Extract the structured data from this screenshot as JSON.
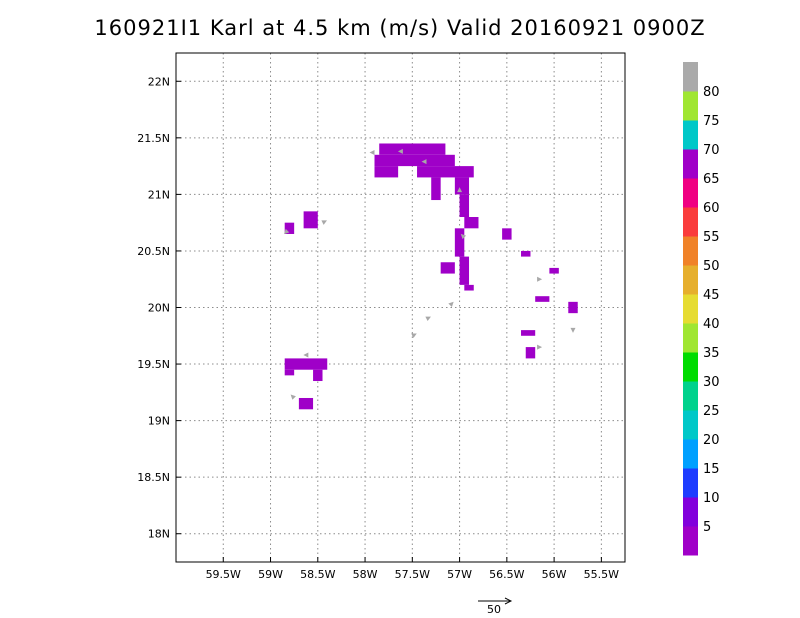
{
  "title": "160921I1 Karl at 4.5 km (m/s) Valid 20160921 0900Z",
  "chart_data": {
    "type": "heatmap",
    "title": "160921I1 Karl at 4.5 km (m/s) Valid 20160921 0900Z",
    "xlim": [
      -60.0,
      -55.25
    ],
    "ylim": [
      17.75,
      22.25
    ],
    "x_ticks": [
      {
        "value": -59.5,
        "label": "59.5W"
      },
      {
        "value": -59.0,
        "label": "59W"
      },
      {
        "value": -58.5,
        "label": "58.5W"
      },
      {
        "value": -58.0,
        "label": "58W"
      },
      {
        "value": -57.5,
        "label": "57.5W"
      },
      {
        "value": -57.0,
        "label": "57W"
      },
      {
        "value": -56.5,
        "label": "56.5W"
      },
      {
        "value": -56.0,
        "label": "56W"
      },
      {
        "value": -55.5,
        "label": "55.5W"
      }
    ],
    "y_ticks": [
      {
        "value": 22.0,
        "label": "22N"
      },
      {
        "value": 21.5,
        "label": "21.5N"
      },
      {
        "value": 21.0,
        "label": "21N"
      },
      {
        "value": 20.5,
        "label": "20.5N"
      },
      {
        "value": 20.0,
        "label": "20N"
      },
      {
        "value": 19.5,
        "label": "19.5N"
      },
      {
        "value": 19.0,
        "label": "19N"
      },
      {
        "value": 18.5,
        "label": "18.5N"
      },
      {
        "value": 18.0,
        "label": "18N"
      }
    ],
    "grid": true,
    "cell_deg": 0.05,
    "cell_color": "#9f00c8",
    "cells": [
      {
        "lon0": -57.85,
        "lon1": -57.15,
        "lat0": 21.35,
        "lat1": 21.45
      },
      {
        "lon0": -57.9,
        "lon1": -57.05,
        "lat0": 21.25,
        "lat1": 21.35
      },
      {
        "lon0": -57.9,
        "lon1": -57.65,
        "lat0": 21.15,
        "lat1": 21.25
      },
      {
        "lon0": -57.45,
        "lon1": -56.85,
        "lat0": 21.15,
        "lat1": 21.25
      },
      {
        "lon0": -57.3,
        "lon1": -57.2,
        "lat0": 20.95,
        "lat1": 21.15
      },
      {
        "lon0": -57.05,
        "lon1": -56.9,
        "lat0": 21.0,
        "lat1": 21.15
      },
      {
        "lon0": -57.0,
        "lon1": -56.9,
        "lat0": 20.8,
        "lat1": 21.0
      },
      {
        "lon0": -56.95,
        "lon1": -56.8,
        "lat0": 20.7,
        "lat1": 20.8
      },
      {
        "lon0": -57.05,
        "lon1": -56.95,
        "lat0": 20.45,
        "lat1": 20.7
      },
      {
        "lon0": -57.0,
        "lon1": -56.9,
        "lat0": 20.2,
        "lat1": 20.45
      },
      {
        "lon0": -57.2,
        "lon1": -57.05,
        "lat0": 20.3,
        "lat1": 20.4
      },
      {
        "lon0": -56.95,
        "lon1": -56.85,
        "lat0": 20.15,
        "lat1": 20.2
      },
      {
        "lon0": -58.85,
        "lon1": -58.75,
        "lat0": 20.65,
        "lat1": 20.75
      },
      {
        "lon0": -58.65,
        "lon1": -58.5,
        "lat0": 20.7,
        "lat1": 20.85
      },
      {
        "lon0": -56.55,
        "lon1": -56.45,
        "lat0": 20.6,
        "lat1": 20.7
      },
      {
        "lon0": -56.35,
        "lon1": -56.25,
        "lat0": 20.45,
        "lat1": 20.5
      },
      {
        "lon0": -56.05,
        "lon1": -55.95,
        "lat0": 20.3,
        "lat1": 20.35
      },
      {
        "lon0": -56.2,
        "lon1": -56.05,
        "lat0": 20.05,
        "lat1": 20.1
      },
      {
        "lon0": -55.85,
        "lon1": -55.75,
        "lat0": 19.95,
        "lat1": 20.05
      },
      {
        "lon0": -56.35,
        "lon1": -56.2,
        "lat0": 19.75,
        "lat1": 19.8
      },
      {
        "lon0": -56.3,
        "lon1": -56.2,
        "lat0": 19.55,
        "lat1": 19.65
      },
      {
        "lon0": -58.85,
        "lon1": -58.4,
        "lat0": 19.45,
        "lat1": 19.55
      },
      {
        "lon0": -58.85,
        "lon1": -58.75,
        "lat0": 19.4,
        "lat1": 19.45
      },
      {
        "lon0": -58.55,
        "lon1": -58.45,
        "lat0": 19.35,
        "lat1": 19.45
      },
      {
        "lon0": -58.7,
        "lon1": -58.55,
        "lat0": 19.1,
        "lat1": 19.2
      }
    ],
    "vectors": [
      {
        "lon": -57.6,
        "lat": 21.38,
        "u": -1,
        "v": 0
      },
      {
        "lon": -57.35,
        "lat": 21.29,
        "u": -1,
        "v": 0
      },
      {
        "lon": -57.9,
        "lat": 21.37,
        "u": -1,
        "v": 0
      },
      {
        "lon": -57.0,
        "lat": 21.02,
        "u": 0,
        "v": 1
      },
      {
        "lon": -56.95,
        "lat": 20.62,
        "u": -1,
        "v": 1
      },
      {
        "lon": -58.82,
        "lat": 20.68,
        "u": -1,
        "v": -1
      },
      {
        "lon": -58.45,
        "lat": 20.75,
        "u": 1,
        "v": 0.5
      },
      {
        "lon": -56.18,
        "lat": 20.25,
        "u": 1,
        "v": 0
      },
      {
        "lon": -55.8,
        "lat": 19.82,
        "u": 0,
        "v": -1
      },
      {
        "lon": -56.18,
        "lat": 19.65,
        "u": 1,
        "v": 0
      },
      {
        "lon": -57.1,
        "lat": 20.02,
        "u": 0.5,
        "v": 0.5
      },
      {
        "lon": -57.35,
        "lat": 19.9,
        "u": 1,
        "v": 0.5
      },
      {
        "lon": -57.5,
        "lat": 19.75,
        "u": 1,
        "v": 0.5
      },
      {
        "lon": -58.6,
        "lat": 19.58,
        "u": -1,
        "v": 0
      },
      {
        "lon": -58.75,
        "lat": 19.2,
        "u": -1,
        "v": 1
      }
    ],
    "reference_vector": {
      "label": "50"
    },
    "colorbar": {
      "colors": [
        "#a000c8",
        "#8200dc",
        "#1e3cff",
        "#00a0ff",
        "#00c8c8",
        "#00d28c",
        "#00dc00",
        "#a0e632",
        "#e6dc32",
        "#e6af2d",
        "#f08228",
        "#fa3c3c",
        "#f00082",
        "#a000c8",
        "#00c8c8",
        "#a0e632",
        "#aaaaaa"
      ],
      "labels": [
        "5",
        "10",
        "15",
        "20",
        "25",
        "30",
        "35",
        "40",
        "45",
        "50",
        "55",
        "60",
        "65",
        "70",
        "75",
        "80"
      ]
    }
  }
}
